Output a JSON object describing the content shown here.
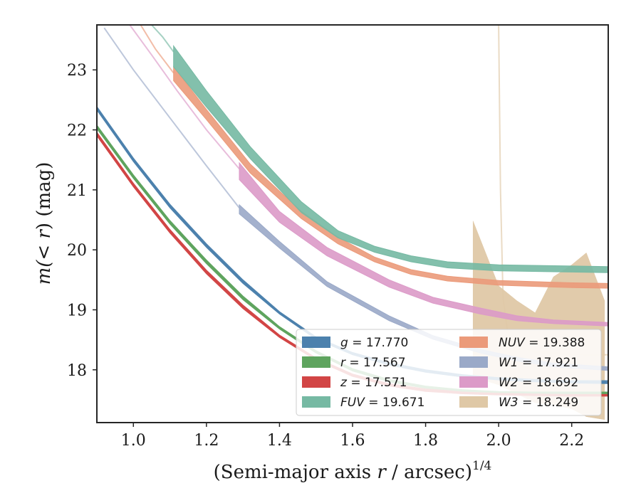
{
  "chart_data": {
    "type": "area",
    "xlabel_main": "(Semi-major axis ",
    "xlabel_var": "r",
    "xlabel_tail": " / arcsec)",
    "xlabel_sup": "1/4",
    "ylabel_main": "m(",
    "ylabel_var": "< r",
    "ylabel_tail": ") (mag)",
    "xlim": [
      0.9,
      2.3
    ],
    "ylim": [
      23.75,
      17.12
    ],
    "y_inverted": true,
    "xticks": [
      "1.0",
      "1.2",
      "1.4",
      "1.6",
      "1.8",
      "2.0",
      "2.2"
    ],
    "yticks": [
      "18",
      "19",
      "20",
      "21",
      "22",
      "23"
    ],
    "grid": false,
    "legend_position": "lower-right",
    "series": [
      {
        "name": "g",
        "value": "17.770",
        "color": "#4c81ad",
        "x": [
          0.9,
          1.0,
          1.1,
          1.2,
          1.3,
          1.4,
          1.5,
          1.6,
          1.7,
          1.8,
          1.9,
          2.0,
          2.1,
          2.2,
          2.3
        ],
        "y": [
          22.36,
          21.5,
          20.73,
          20.07,
          19.47,
          18.95,
          18.53,
          18.27,
          18.1,
          17.98,
          17.9,
          17.85,
          17.82,
          17.8,
          17.79
        ],
        "lo": [
          22.33,
          21.47,
          20.7,
          20.04,
          19.44,
          18.93,
          18.51,
          18.25,
          18.08,
          17.96,
          17.88,
          17.83,
          17.8,
          17.78,
          17.77
        ],
        "hi": [
          22.39,
          21.53,
          20.76,
          20.1,
          19.5,
          18.97,
          18.55,
          18.29,
          18.12,
          18.0,
          17.92,
          17.87,
          17.84,
          17.82,
          17.82
        ]
      },
      {
        "name": "r",
        "value": "17.567",
        "color": "#5ea45e",
        "x": [
          0.9,
          1.0,
          1.1,
          1.2,
          1.3,
          1.4,
          1.5,
          1.6,
          1.7,
          1.8,
          1.9,
          2.0,
          2.1,
          2.2,
          2.3
        ],
        "y": [
          22.05,
          21.22,
          20.46,
          19.8,
          19.2,
          18.7,
          18.3,
          18.0,
          17.82,
          17.71,
          17.65,
          17.62,
          17.61,
          17.61,
          17.61
        ],
        "lo": [
          22.02,
          21.19,
          20.43,
          19.77,
          19.17,
          18.68,
          18.28,
          17.98,
          17.8,
          17.69,
          17.63,
          17.6,
          17.59,
          17.59,
          17.59
        ],
        "hi": [
          22.08,
          21.25,
          20.49,
          19.83,
          19.23,
          18.72,
          18.32,
          18.02,
          17.84,
          17.73,
          17.67,
          17.64,
          17.63,
          17.63,
          17.63
        ]
      },
      {
        "name": "z",
        "value": "17.571",
        "color": "#d24545",
        "x": [
          0.9,
          1.0,
          1.1,
          1.2,
          1.3,
          1.4,
          1.5,
          1.6,
          1.7,
          1.8,
          1.9,
          2.0,
          2.1,
          2.2,
          2.3
        ],
        "y": [
          21.93,
          21.08,
          20.31,
          19.63,
          19.05,
          18.56,
          18.18,
          17.91,
          17.75,
          17.66,
          17.62,
          17.6,
          17.59,
          17.58,
          17.58
        ],
        "lo": [
          21.9,
          21.05,
          20.28,
          19.6,
          19.02,
          18.54,
          18.16,
          17.89,
          17.73,
          17.64,
          17.6,
          17.58,
          17.57,
          17.56,
          17.56
        ],
        "hi": [
          21.96,
          21.11,
          20.34,
          19.66,
          19.08,
          18.58,
          18.2,
          17.93,
          17.77,
          17.68,
          17.64,
          17.62,
          17.61,
          17.6,
          17.6
        ]
      },
      {
        "name": "FUV",
        "value": "19.671",
        "color": "#76b9a3",
        "x": [
          1.11,
          1.2,
          1.32,
          1.46,
          1.56,
          1.66,
          1.76,
          1.86,
          2.0,
          2.2,
          2.3
        ],
        "y": [
          23.2,
          22.5,
          21.6,
          20.7,
          20.25,
          20.0,
          19.85,
          19.75,
          19.7,
          19.68,
          19.67
        ],
        "lo": [
          23.05,
          22.38,
          21.52,
          20.62,
          20.2,
          19.96,
          19.8,
          19.7,
          19.65,
          19.63,
          19.62
        ],
        "hi": [
          23.4,
          22.65,
          21.72,
          20.8,
          20.32,
          20.06,
          19.9,
          19.8,
          19.75,
          19.73,
          19.72
        ]
      },
      {
        "name": "NUV",
        "value": "19.388",
        "color": "#eb9a7a",
        "x": [
          1.11,
          1.2,
          1.32,
          1.46,
          1.56,
          1.66,
          1.76,
          1.86,
          2.0,
          2.2,
          2.3
        ],
        "y": [
          22.92,
          22.25,
          21.35,
          20.58,
          20.15,
          19.84,
          19.63,
          19.52,
          19.45,
          19.41,
          19.4
        ],
        "lo": [
          22.82,
          22.17,
          21.28,
          20.52,
          20.1,
          19.8,
          19.59,
          19.48,
          19.41,
          19.37,
          19.36
        ],
        "hi": [
          23.05,
          22.34,
          21.43,
          20.64,
          20.21,
          19.88,
          19.67,
          19.56,
          19.49,
          19.45,
          19.44
        ]
      },
      {
        "name": "W1",
        "value": "17.921",
        "color": "#9aa9c8",
        "x": [
          1.29,
          1.4,
          1.53,
          1.7,
          1.82,
          1.95,
          2.05,
          2.15,
          2.3
        ],
        "y": [
          20.67,
          20.08,
          19.43,
          18.86,
          18.54,
          18.31,
          18.18,
          18.08,
          18.02
        ],
        "lo": [
          20.6,
          20.03,
          19.39,
          18.82,
          18.51,
          18.28,
          18.15,
          18.05,
          17.99
        ],
        "hi": [
          20.75,
          20.14,
          19.47,
          18.9,
          18.57,
          18.34,
          18.21,
          18.11,
          18.05
        ]
      },
      {
        "name": "W2",
        "value": "18.692",
        "color": "#dc9ac8",
        "x": [
          1.29,
          1.4,
          1.53,
          1.7,
          1.82,
          1.95,
          2.05,
          2.15,
          2.3
        ],
        "y": [
          21.28,
          20.55,
          19.97,
          19.44,
          19.16,
          18.98,
          18.86,
          18.8,
          18.76
        ],
        "lo": [
          21.17,
          20.46,
          19.9,
          19.38,
          19.11,
          18.93,
          18.82,
          18.77,
          18.73
        ],
        "hi": [
          21.45,
          20.64,
          20.04,
          19.5,
          19.21,
          19.03,
          18.9,
          18.83,
          18.79
        ]
      },
      {
        "name": "W3",
        "value": "18.249",
        "color": "#dfc8a6",
        "x": [
          1.93,
          2.0,
          2.05,
          2.1,
          2.15,
          2.2,
          2.24,
          2.29
        ],
        "y": [
          18.9,
          18.6,
          18.4,
          18.3,
          18.28,
          18.26,
          18.25,
          18.25
        ],
        "lo": [
          17.88,
          17.75,
          17.6,
          17.45,
          17.42,
          17.35,
          17.22,
          17.17
        ],
        "hi": [
          20.48,
          19.4,
          19.15,
          18.95,
          19.55,
          19.75,
          19.95,
          19.15
        ]
      }
    ],
    "extrapolations": [
      {
        "name": "g",
        "x": [
          0.9,
          1.0,
          1.1,
          1.2,
          1.3,
          1.4,
          1.5,
          1.6,
          1.7,
          1.8,
          1.9,
          2.0,
          2.1,
          2.2,
          2.3
        ],
        "y": [
          22.36,
          21.5,
          20.73,
          20.07,
          19.47,
          18.95,
          18.53,
          18.27,
          18.1,
          17.98,
          17.9,
          17.85,
          17.82,
          17.8,
          17.79
        ]
      },
      {
        "name": "FUV",
        "x": [
          1.05,
          1.08,
          1.11
        ],
        "y": [
          23.75,
          23.55,
          23.3
        ]
      },
      {
        "name": "NUV",
        "x": [
          1.02,
          1.06,
          1.11
        ],
        "y": [
          23.75,
          23.35,
          22.95
        ]
      },
      {
        "name": "W1",
        "x": [
          0.92,
          1.0,
          1.1,
          1.2,
          1.29
        ],
        "y": [
          23.7,
          23.0,
          22.2,
          21.4,
          20.7
        ]
      },
      {
        "name": "W2",
        "x": [
          0.99,
          1.05,
          1.12,
          1.2,
          1.29
        ],
        "y": [
          23.75,
          23.25,
          22.65,
          22.0,
          21.35
        ]
      },
      {
        "name": "W3",
        "x": [
          2.0,
          2.005,
          2.012,
          2.025,
          2.05,
          2.1,
          2.2,
          2.3
        ],
        "y": [
          23.75,
          21.0,
          19.2,
          18.6,
          18.4,
          18.3,
          18.26,
          18.25
        ]
      }
    ]
  }
}
